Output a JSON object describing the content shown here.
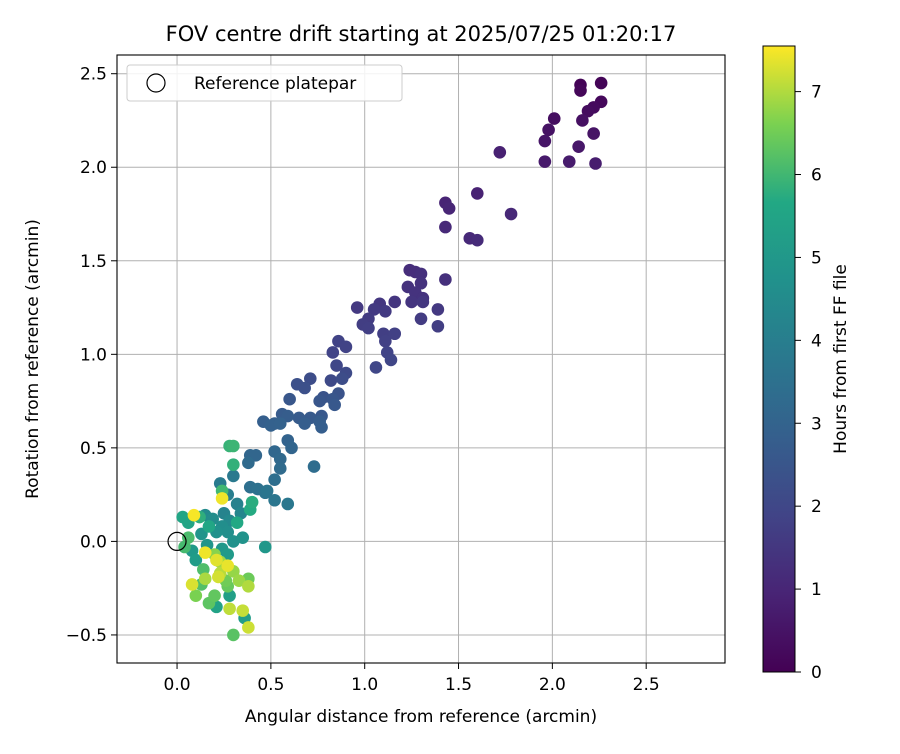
{
  "chart_data": {
    "type": "scatter",
    "title": "FOV centre drift starting at 2025/07/25 01:20:17",
    "xlabel": "Angular distance from reference (arcmin)",
    "ylabel": "Rotation from reference (arcmin)",
    "xlim": [
      -0.32,
      2.92
    ],
    "ylim": [
      -0.65,
      2.6
    ],
    "xticks": [
      0.0,
      0.5,
      1.0,
      1.5,
      2.0,
      2.5
    ],
    "xtick_labels": [
      "0.0",
      "0.5",
      "1.0",
      "1.5",
      "2.0",
      "2.5"
    ],
    "yticks": [
      -0.5,
      0.0,
      0.5,
      1.0,
      1.5,
      2.0,
      2.5
    ],
    "ytick_labels": [
      "−0.5",
      "0.0",
      "0.5",
      "1.0",
      "1.5",
      "2.0",
      "2.5"
    ],
    "grid": true,
    "legend": {
      "position": "top-left",
      "label": "Reference platepar"
    },
    "reference_point": {
      "x": 0.0,
      "y": 0.0
    },
    "colorbar": {
      "label": "Hours from first FF file",
      "range": [
        0,
        7.55
      ],
      "ticks": [
        0,
        1,
        2,
        3,
        4,
        5,
        6,
        7
      ],
      "tick_labels": [
        "0",
        "1",
        "2",
        "3",
        "4",
        "5",
        "6",
        "7"
      ],
      "colormap": "viridis"
    },
    "points": [
      {
        "x": 2.15,
        "y": 2.44,
        "h": 0.05
      },
      {
        "x": 2.26,
        "y": 2.45,
        "h": 0.1
      },
      {
        "x": 2.15,
        "y": 2.41,
        "h": 0.15
      },
      {
        "x": 2.26,
        "y": 2.35,
        "h": 0.2
      },
      {
        "x": 2.22,
        "y": 2.32,
        "h": 0.25
      },
      {
        "x": 2.19,
        "y": 2.3,
        "h": 0.3
      },
      {
        "x": 2.01,
        "y": 2.26,
        "h": 0.35
      },
      {
        "x": 2.16,
        "y": 2.25,
        "h": 0.4
      },
      {
        "x": 1.98,
        "y": 2.2,
        "h": 0.45
      },
      {
        "x": 2.22,
        "y": 2.18,
        "h": 0.5
      },
      {
        "x": 1.96,
        "y": 2.14,
        "h": 0.55
      },
      {
        "x": 2.14,
        "y": 2.11,
        "h": 0.6
      },
      {
        "x": 1.96,
        "y": 2.03,
        "h": 0.65
      },
      {
        "x": 2.09,
        "y": 2.03,
        "h": 0.7
      },
      {
        "x": 2.23,
        "y": 2.02,
        "h": 0.75
      },
      {
        "x": 1.72,
        "y": 2.08,
        "h": 0.85
      },
      {
        "x": 1.6,
        "y": 1.86,
        "h": 0.9
      },
      {
        "x": 1.43,
        "y": 1.81,
        "h": 0.95
      },
      {
        "x": 1.45,
        "y": 1.78,
        "h": 1.0
      },
      {
        "x": 1.78,
        "y": 1.75,
        "h": 1.05
      },
      {
        "x": 1.43,
        "y": 1.68,
        "h": 1.1
      },
      {
        "x": 1.56,
        "y": 1.62,
        "h": 1.1
      },
      {
        "x": 1.6,
        "y": 1.61,
        "h": 1.15
      },
      {
        "x": 1.24,
        "y": 1.45,
        "h": 1.2
      },
      {
        "x": 1.27,
        "y": 1.44,
        "h": 1.25
      },
      {
        "x": 1.3,
        "y": 1.43,
        "h": 1.3
      },
      {
        "x": 1.43,
        "y": 1.4,
        "h": 1.3
      },
      {
        "x": 1.3,
        "y": 1.38,
        "h": 1.35
      },
      {
        "x": 1.23,
        "y": 1.36,
        "h": 1.35
      },
      {
        "x": 1.27,
        "y": 1.33,
        "h": 1.4
      },
      {
        "x": 1.31,
        "y": 1.3,
        "h": 1.4
      },
      {
        "x": 1.25,
        "y": 1.28,
        "h": 1.45
      },
      {
        "x": 1.16,
        "y": 1.28,
        "h": 1.45
      },
      {
        "x": 1.31,
        "y": 1.28,
        "h": 1.5
      },
      {
        "x": 1.08,
        "y": 1.27,
        "h": 1.5
      },
      {
        "x": 0.96,
        "y": 1.25,
        "h": 1.55
      },
      {
        "x": 1.39,
        "y": 1.24,
        "h": 1.55
      },
      {
        "x": 1.05,
        "y": 1.24,
        "h": 1.6
      },
      {
        "x": 1.11,
        "y": 1.23,
        "h": 1.6
      },
      {
        "x": 1.02,
        "y": 1.19,
        "h": 1.65
      },
      {
        "x": 1.3,
        "y": 1.19,
        "h": 1.65
      },
      {
        "x": 0.99,
        "y": 1.16,
        "h": 1.7
      },
      {
        "x": 1.39,
        "y": 1.15,
        "h": 1.7
      },
      {
        "x": 1.02,
        "y": 1.14,
        "h": 1.75
      },
      {
        "x": 1.1,
        "y": 1.11,
        "h": 1.75
      },
      {
        "x": 1.16,
        "y": 1.11,
        "h": 1.8
      },
      {
        "x": 1.11,
        "y": 1.07,
        "h": 1.8
      },
      {
        "x": 0.86,
        "y": 1.07,
        "h": 1.85
      },
      {
        "x": 0.9,
        "y": 1.04,
        "h": 1.85
      },
      {
        "x": 1.12,
        "y": 1.01,
        "h": 1.9
      },
      {
        "x": 0.83,
        "y": 1.01,
        "h": 1.9
      },
      {
        "x": 1.14,
        "y": 0.97,
        "h": 1.95
      },
      {
        "x": 1.06,
        "y": 0.93,
        "h": 2.0
      },
      {
        "x": 0.85,
        "y": 0.94,
        "h": 2.0
      },
      {
        "x": 0.9,
        "y": 0.9,
        "h": 2.1
      },
      {
        "x": 0.82,
        "y": 0.86,
        "h": 2.1
      },
      {
        "x": 0.88,
        "y": 0.87,
        "h": 2.2
      },
      {
        "x": 0.71,
        "y": 0.87,
        "h": 2.2
      },
      {
        "x": 0.64,
        "y": 0.84,
        "h": 2.3
      },
      {
        "x": 0.68,
        "y": 0.82,
        "h": 2.3
      },
      {
        "x": 0.86,
        "y": 0.79,
        "h": 2.4
      },
      {
        "x": 0.78,
        "y": 0.77,
        "h": 2.4
      },
      {
        "x": 0.83,
        "y": 0.76,
        "h": 2.5
      },
      {
        "x": 0.76,
        "y": 0.75,
        "h": 2.5
      },
      {
        "x": 0.6,
        "y": 0.76,
        "h": 2.55
      },
      {
        "x": 0.84,
        "y": 0.73,
        "h": 2.6
      },
      {
        "x": 0.77,
        "y": 0.67,
        "h": 2.6
      },
      {
        "x": 0.71,
        "y": 0.66,
        "h": 2.65
      },
      {
        "x": 0.65,
        "y": 0.66,
        "h": 2.7
      },
      {
        "x": 0.56,
        "y": 0.68,
        "h": 2.7
      },
      {
        "x": 0.59,
        "y": 0.67,
        "h": 2.75
      },
      {
        "x": 0.76,
        "y": 0.64,
        "h": 2.75
      },
      {
        "x": 0.77,
        "y": 0.61,
        "h": 2.8
      },
      {
        "x": 0.68,
        "y": 0.63,
        "h": 2.8
      },
      {
        "x": 0.46,
        "y": 0.64,
        "h": 2.85
      },
      {
        "x": 0.52,
        "y": 0.63,
        "h": 2.85
      },
      {
        "x": 0.5,
        "y": 0.62,
        "h": 2.9
      },
      {
        "x": 0.55,
        "y": 0.63,
        "h": 2.95
      },
      {
        "x": 0.59,
        "y": 0.54,
        "h": 3.0
      },
      {
        "x": 0.61,
        "y": 0.5,
        "h": 3.05
      },
      {
        "x": 0.39,
        "y": 0.46,
        "h": 3.1
      },
      {
        "x": 0.42,
        "y": 0.46,
        "h": 3.1
      },
      {
        "x": 0.52,
        "y": 0.48,
        "h": 3.15
      },
      {
        "x": 0.55,
        "y": 0.44,
        "h": 3.2
      },
      {
        "x": 0.38,
        "y": 0.42,
        "h": 3.25
      },
      {
        "x": 0.55,
        "y": 0.39,
        "h": 3.3
      },
      {
        "x": 0.73,
        "y": 0.4,
        "h": 3.35
      },
      {
        "x": 0.52,
        "y": 0.33,
        "h": 3.4
      },
      {
        "x": 0.39,
        "y": 0.29,
        "h": 3.45
      },
      {
        "x": 0.43,
        "y": 0.28,
        "h": 3.5
      },
      {
        "x": 0.47,
        "y": 0.26,
        "h": 3.6
      },
      {
        "x": 0.48,
        "y": 0.27,
        "h": 3.65
      },
      {
        "x": 0.52,
        "y": 0.22,
        "h": 3.7
      },
      {
        "x": 0.59,
        "y": 0.2,
        "h": 3.75
      },
      {
        "x": 0.3,
        "y": 0.35,
        "h": 3.8
      },
      {
        "x": 0.23,
        "y": 0.31,
        "h": 3.9
      },
      {
        "x": 0.27,
        "y": 0.25,
        "h": 4.0
      },
      {
        "x": 0.32,
        "y": 0.2,
        "h": 4.1
      },
      {
        "x": 0.25,
        "y": 0.15,
        "h": 4.2
      },
      {
        "x": 0.34,
        "y": 0.15,
        "h": 4.3
      },
      {
        "x": 0.28,
        "y": 0.11,
        "h": 4.4
      },
      {
        "x": 0.15,
        "y": 0.14,
        "h": 4.5
      },
      {
        "x": 0.19,
        "y": 0.12,
        "h": 4.55
      },
      {
        "x": 0.24,
        "y": 0.08,
        "h": 4.6
      },
      {
        "x": 0.27,
        "y": 0.05,
        "h": 4.65
      },
      {
        "x": 0.21,
        "y": 0.05,
        "h": 4.7
      },
      {
        "x": 0.3,
        "y": 0.0,
        "h": 4.75
      },
      {
        "x": 0.35,
        "y": 0.02,
        "h": 4.8
      },
      {
        "x": 0.13,
        "y": 0.04,
        "h": 4.85
      },
      {
        "x": 0.16,
        "y": -0.02,
        "h": 4.9
      },
      {
        "x": 0.47,
        "y": -0.03,
        "h": 4.95
      },
      {
        "x": 0.24,
        "y": -0.04,
        "h": 5.0
      },
      {
        "x": 0.08,
        "y": -0.05,
        "h": 5.05
      },
      {
        "x": 0.27,
        "y": -0.07,
        "h": 5.1
      },
      {
        "x": 0.1,
        "y": -0.1,
        "h": 5.15
      },
      {
        "x": 0.36,
        "y": -0.41,
        "h": 5.2
      },
      {
        "x": 0.28,
        "y": -0.29,
        "h": 5.3
      },
      {
        "x": 0.21,
        "y": -0.35,
        "h": 5.4
      },
      {
        "x": 0.06,
        "y": 0.1,
        "h": 5.5
      },
      {
        "x": 0.03,
        "y": 0.13,
        "h": 5.55
      },
      {
        "x": 0.17,
        "y": 0.08,
        "h": 5.6
      },
      {
        "x": 0.32,
        "y": 0.1,
        "h": 5.65
      },
      {
        "x": 0.39,
        "y": 0.17,
        "h": 5.7
      },
      {
        "x": 0.4,
        "y": 0.21,
        "h": 5.75
      },
      {
        "x": 0.12,
        "y": 0.13,
        "h": 5.8
      },
      {
        "x": 0.3,
        "y": 0.41,
        "h": 5.85
      },
      {
        "x": 0.28,
        "y": 0.51,
        "h": 5.9
      },
      {
        "x": 0.3,
        "y": 0.51,
        "h": 5.95
      },
      {
        "x": 0.24,
        "y": 0.27,
        "h": 6.0
      },
      {
        "x": 0.04,
        "y": -0.03,
        "h": 6.05
      },
      {
        "x": 0.06,
        "y": 0.02,
        "h": 6.1
      },
      {
        "x": 0.14,
        "y": -0.15,
        "h": 6.15
      },
      {
        "x": 0.13,
        "y": -0.23,
        "h": 6.2
      },
      {
        "x": 0.3,
        "y": -0.5,
        "h": 6.25
      },
      {
        "x": 0.17,
        "y": -0.33,
        "h": 6.3
      },
      {
        "x": 0.2,
        "y": -0.29,
        "h": 6.35
      },
      {
        "x": 0.27,
        "y": -0.24,
        "h": 6.4
      },
      {
        "x": 0.38,
        "y": -0.2,
        "h": 6.45
      },
      {
        "x": 0.26,
        "y": -0.21,
        "h": 6.5
      },
      {
        "x": 0.1,
        "y": -0.29,
        "h": 6.6
      },
      {
        "x": 0.2,
        "y": -0.07,
        "h": 6.7
      },
      {
        "x": 0.3,
        "y": -0.16,
        "h": 6.8
      },
      {
        "x": 0.33,
        "y": -0.21,
        "h": 6.85
      },
      {
        "x": 0.23,
        "y": -0.11,
        "h": 6.9
      },
      {
        "x": 0.15,
        "y": -0.2,
        "h": 6.95
      },
      {
        "x": 0.38,
        "y": -0.24,
        "h": 7.0
      },
      {
        "x": 0.23,
        "y": -0.17,
        "h": 7.05
      },
      {
        "x": 0.28,
        "y": -0.36,
        "h": 7.1
      },
      {
        "x": 0.35,
        "y": -0.37,
        "h": 7.15
      },
      {
        "x": 0.38,
        "y": -0.46,
        "h": 7.2
      },
      {
        "x": 0.22,
        "y": -0.19,
        "h": 7.25
      },
      {
        "x": 0.08,
        "y": -0.23,
        "h": 7.3
      },
      {
        "x": 0.21,
        "y": -0.1,
        "h": 7.35
      },
      {
        "x": 0.27,
        "y": -0.13,
        "h": 7.4
      },
      {
        "x": 0.15,
        "y": -0.06,
        "h": 7.45
      },
      {
        "x": 0.24,
        "y": 0.23,
        "h": 7.45
      },
      {
        "x": 0.09,
        "y": 0.14,
        "h": 7.5
      }
    ]
  }
}
